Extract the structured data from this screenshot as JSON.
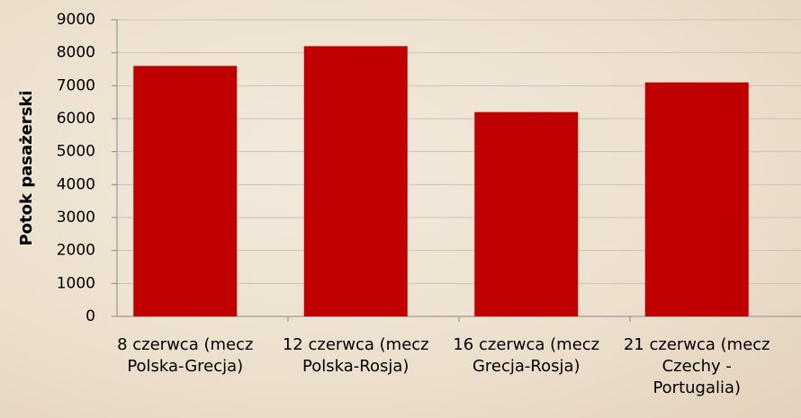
{
  "chart_data": {
    "type": "bar",
    "y_label": "Potok pasażerski",
    "categories": [
      "8 czerwca (mecz Polska-Grecja)",
      "12 czerwca (mecz Polska-Rosja)",
      "16 czerwca (mecz Grecja-Rosja)",
      "21 czerwca (mecz Czechy - Portugalia)"
    ],
    "values": [
      7600,
      8200,
      6200,
      7100
    ],
    "color": "#c00000",
    "ylim": [
      0,
      9000
    ],
    "yticks": [
      0,
      1000,
      2000,
      3000,
      4000,
      5000,
      6000,
      7000,
      8000,
      9000
    ],
    "grid": true
  }
}
